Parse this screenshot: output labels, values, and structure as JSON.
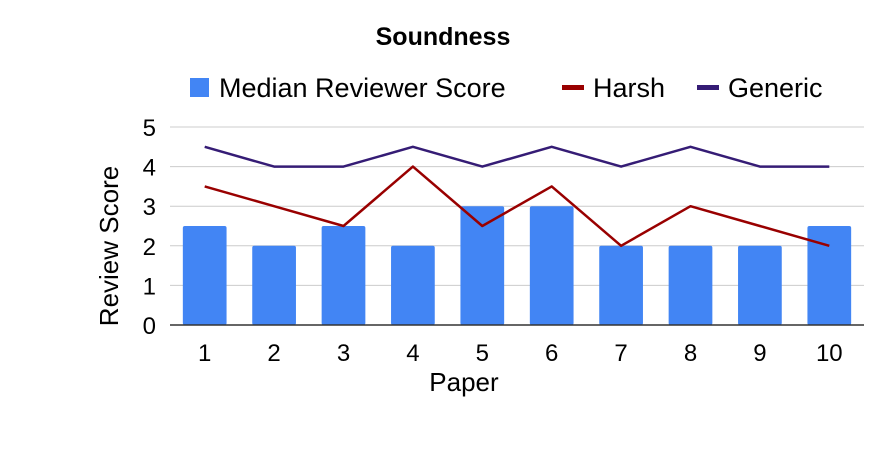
{
  "chart_data": {
    "type": "bar",
    "title": "Soundness",
    "xlabel": "Paper",
    "ylabel": "Review Score",
    "categories": [
      "1",
      "2",
      "3",
      "4",
      "5",
      "6",
      "7",
      "8",
      "9",
      "10"
    ],
    "ylim": [
      0,
      5
    ],
    "yticks": [
      "0",
      "1",
      "2",
      "3",
      "4",
      "5"
    ],
    "grid": true,
    "legend_position": "top",
    "series": [
      {
        "name": "Median Reviewer Score",
        "kind": "bar",
        "color": "#4285f4",
        "values": [
          2.5,
          2,
          2.5,
          2,
          3,
          3,
          2,
          2,
          2,
          2.5
        ]
      },
      {
        "name": "Harsh",
        "kind": "line",
        "color": "#990000",
        "values": [
          3.5,
          3,
          2.5,
          4,
          2.5,
          3.5,
          2,
          3,
          2.5,
          2
        ]
      },
      {
        "name": "Generic",
        "kind": "line",
        "color": "#351c75",
        "values": [
          4.5,
          4,
          4,
          4.5,
          4,
          4.5,
          4,
          4.5,
          4,
          4
        ]
      }
    ]
  }
}
